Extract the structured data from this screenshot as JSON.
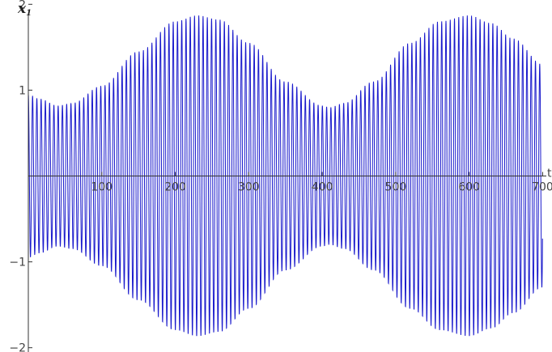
{
  "chart_data": {
    "type": "line",
    "title": "",
    "xlabel": "t",
    "ylabel": "x",
    "ylabel_subscript": "1",
    "xlim": [
      0,
      705
    ],
    "ylim": [
      -2.05,
      2.05
    ],
    "grid": false,
    "x_ticks": [
      100,
      200,
      300,
      400,
      500,
      600,
      700
    ],
    "x_tick_labels": [
      "100",
      "200",
      "300",
      "400",
      "500",
      "600",
      "700"
    ],
    "y_ticks": [
      -2,
      -1,
      1,
      2
    ],
    "y_tick_labels": [
      "−2",
      "−1",
      "1",
      "2"
    ],
    "line_color": "#1a1acc",
    "series": [
      {
        "signal": "amplitude-modulated oscillation",
        "t_start": 0,
        "t_end": 700,
        "carrier_period": 5.8,
        "envelope_t": [
          0,
          15,
          40,
          60,
          100,
          150,
          200,
          230,
          260,
          300,
          350,
          400,
          410,
          430,
          470,
          520,
          560,
          600,
          630,
          660,
          700
        ],
        "envelope_amplitude": [
          0.95,
          0.9,
          0.82,
          0.85,
          1.05,
          1.45,
          1.8,
          1.87,
          1.82,
          1.55,
          1.1,
          0.82,
          0.8,
          0.85,
          1.1,
          1.55,
          1.8,
          1.87,
          1.78,
          1.6,
          1.3
        ]
      }
    ]
  }
}
